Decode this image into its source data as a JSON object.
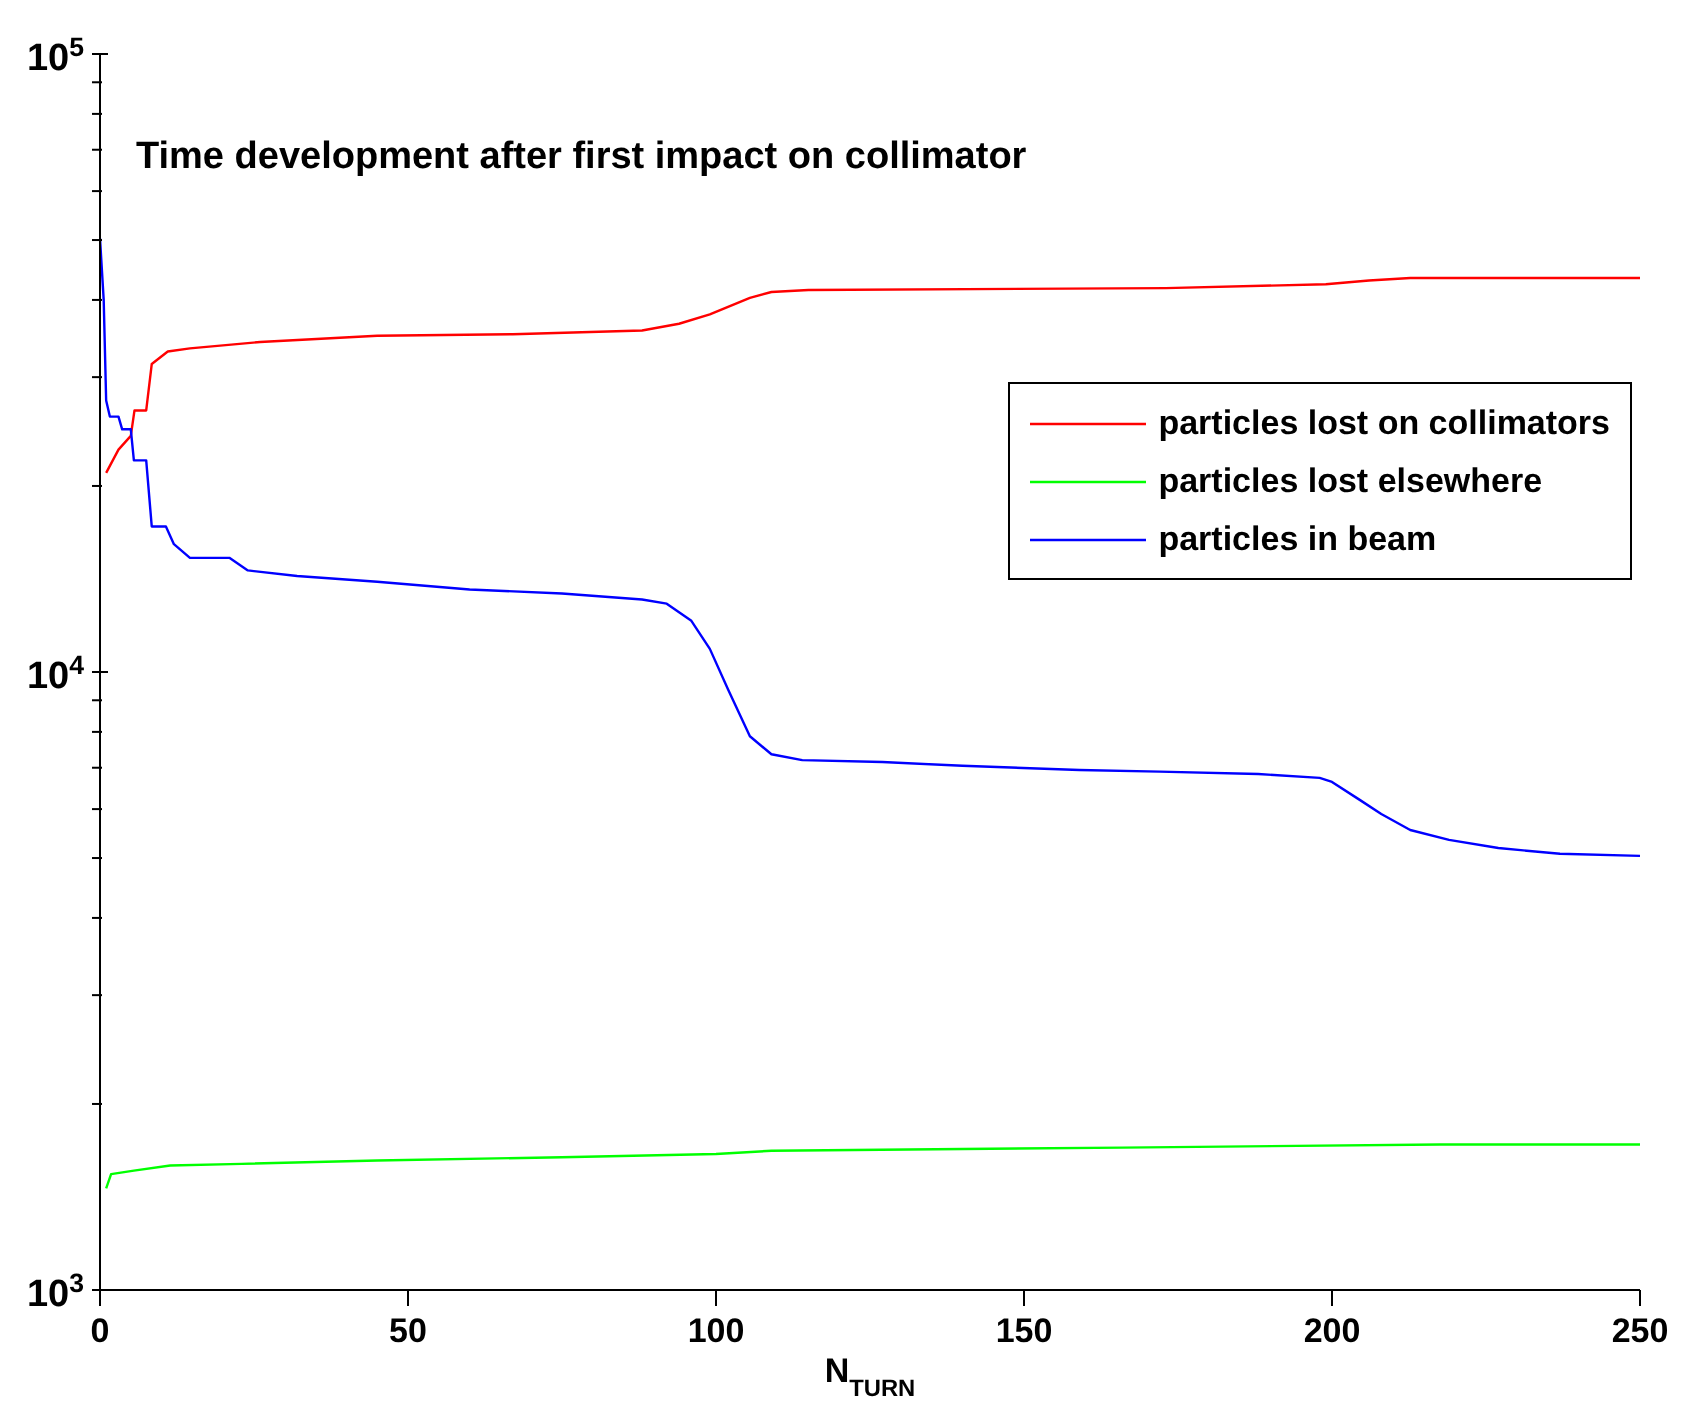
{
  "chart_data": {
    "type": "line",
    "title": "Time development after first impact on collimator",
    "xlabel": "N$_{TURN}$",
    "xlim": [
      0,
      250
    ],
    "xticks": [
      0,
      50,
      100,
      150,
      200,
      250
    ],
    "log": true,
    "ylim": [
      1000,
      100000
    ],
    "yticks": [
      {
        "value": 1000,
        "label": "10$^{3}$"
      },
      {
        "value": 2000,
        "label": null
      },
      {
        "value": 3000,
        "label": null
      },
      {
        "value": 4000,
        "label": null
      },
      {
        "value": 5000,
        "label": null
      },
      {
        "value": 6000,
        "label": null
      },
      {
        "value": 7000,
        "label": null
      },
      {
        "value": 8000,
        "label": null
      },
      {
        "value": 9000,
        "label": null
      },
      {
        "value": 10000,
        "label": "10$^{4}$"
      },
      {
        "value": 20000,
        "label": null
      },
      {
        "value": 30000,
        "label": null
      },
      {
        "value": 40000,
        "label": null
      },
      {
        "value": 50000,
        "label": null
      },
      {
        "value": 60000,
        "label": null
      },
      {
        "value": 70000,
        "label": null
      },
      {
        "value": 80000,
        "label": null
      },
      {
        "value": 90000,
        "label": null
      },
      {
        "value": 100000,
        "label": "10$^{5}$"
      }
    ],
    "grid": false,
    "legend": "top right",
    "marker": "none",
    "line_style": "solid",
    "series": [
      {
        "name": "particles lost on collimators",
        "color": "#ff0000",
        "x": [
          1,
          3,
          5,
          5.6,
          7.5,
          8.4,
          11,
          14.6,
          26,
          45,
          67,
          88,
          94,
          99,
          105.5,
          109,
          115,
          173,
          199,
          206,
          212.7,
          250
        ],
        "values": [
          21000,
          22900,
          24100,
          26500,
          26500,
          31500,
          33000,
          33400,
          34200,
          35000,
          35200,
          35700,
          36600,
          37900,
          40300,
          41200,
          41500,
          41800,
          42400,
          43000,
          43400,
          43400
        ]
      },
      {
        "name": "particles lost elsewhere",
        "color": "#00ff00",
        "x": [
          1,
          1.8,
          5.5,
          11.4,
          23,
          45,
          75,
          100,
          109,
          166,
          217.5,
          250
        ],
        "values": [
          1460,
          1540,
          1560,
          1590,
          1600,
          1620,
          1640,
          1660,
          1680,
          1700,
          1720,
          1720
        ]
      },
      {
        "name": "particles in beam",
        "color": "#0000ff",
        "x": [
          0,
          0.6,
          1,
          1.6,
          3,
          3.6,
          5,
          5.5,
          7.5,
          8.4,
          10.7,
          12,
          14.6,
          21,
          24,
          32,
          45,
          60,
          75,
          88,
          92,
          96,
          99,
          102,
          105.5,
          109,
          114,
          127,
          140,
          159,
          172,
          188,
          198,
          200,
          204.5,
          208,
          212.7,
          219,
          227,
          237,
          250
        ],
        "values": [
          50300,
          40000,
          27500,
          25900,
          25900,
          24700,
          24700,
          22000,
          22000,
          17200,
          17200,
          16100,
          15300,
          15300,
          14600,
          14300,
          14000,
          13600,
          13400,
          13100,
          12900,
          12100,
          10900,
          9350,
          7870,
          7360,
          7200,
          7150,
          7050,
          6940,
          6900,
          6840,
          6740,
          6640,
          6210,
          5890,
          5550,
          5350,
          5190,
          5080,
          5040
        ]
      }
    ]
  }
}
